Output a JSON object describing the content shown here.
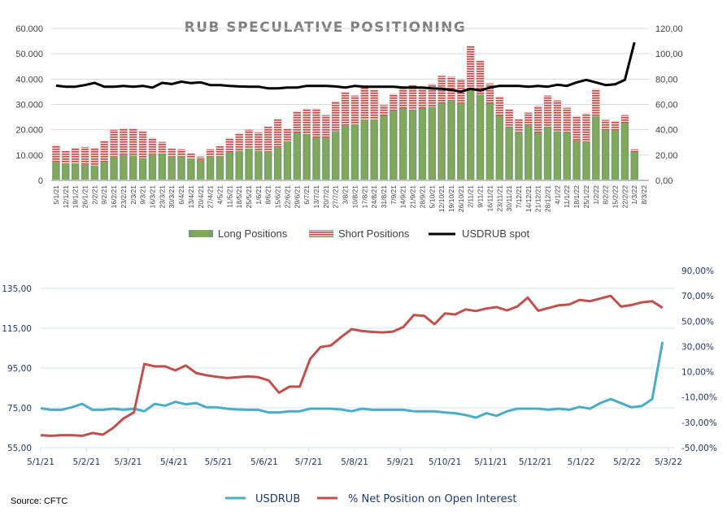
{
  "chart_data": [
    {
      "type": "bar",
      "title": "RUB SPECULATIVE POSITIONING",
      "stacked": true,
      "categories": [
        "5/1/21",
        "12/1/21",
        "19/1/21",
        "26/1/21",
        "2/2/21",
        "9/2/21",
        "16/2/21",
        "23/2/21",
        "2/3/21",
        "9/3/21",
        "16/3/21",
        "23/3/21",
        "30/3/21",
        "6/4/21",
        "13/4/21",
        "20/4/21",
        "27/4/21",
        "4/5/21",
        "11/5/21",
        "18/5/21",
        "25/5/21",
        "1/6/21",
        "8/6/21",
        "15/6/21",
        "22/6/21",
        "29/6/21",
        "6/7/21",
        "13/7/21",
        "20/7/21",
        "27/7/21",
        "3/8/21",
        "10/8/21",
        "17/8/21",
        "24/8/21",
        "31/8/21",
        "7/9/21",
        "14/9/21",
        "21/9/21",
        "28/9/21",
        "5/10/21",
        "12/10/21",
        "19/10/21",
        "26/10/21",
        "2/11/21",
        "9/11/21",
        "16/11/21",
        "23/11/21",
        "30/11/21",
        "7/12/21",
        "14/12/21",
        "21/12/21",
        "28/12/21",
        "4/1/22",
        "11/1/22",
        "18/1/22",
        "25/1/22",
        "1/2/22",
        "8/2/22",
        "15/2/22",
        "22/2/22",
        "1/3/22",
        "8/3/22"
      ],
      "series": [
        {
          "name": "Long Positions",
          "axis": "left",
          "color": "#7fa65a",
          "values": [
            7300,
            6600,
            6800,
            6100,
            5900,
            7400,
            9400,
            10000,
            9800,
            8800,
            10000,
            10400,
            9400,
            9400,
            8700,
            8100,
            9400,
            9500,
            11100,
            11700,
            12600,
            11700,
            11300,
            12900,
            15500,
            18800,
            18400,
            16900,
            16900,
            19500,
            21600,
            22000,
            24000,
            24100,
            25500,
            27400,
            28400,
            27700,
            28400,
            29100,
            30300,
            31600,
            30500,
            35400,
            33900,
            30300,
            25500,
            20900,
            19000,
            21600,
            18800,
            21000,
            19400,
            19000,
            15800,
            15200,
            25300,
            19700,
            19700,
            22600,
            11100,
            null
          ]
        },
        {
          "name": "Short Positions",
          "axis": "left",
          "color": "#c0504d",
          "values": [
            6600,
            5000,
            6100,
            7100,
            7000,
            8400,
            10600,
            10600,
            10800,
            10600,
            6800,
            4800,
            3200,
            2900,
            1900,
            1300,
            2900,
            4000,
            5700,
            7000,
            7400,
            7300,
            10000,
            11300,
            5100,
            8600,
            10000,
            11500,
            8900,
            11800,
            13200,
            11500,
            12600,
            11700,
            4200,
            6800,
            8100,
            10000,
            8400,
            9000,
            11000,
            9400,
            9500,
            17800,
            13500,
            8000,
            7700,
            7200,
            5200,
            5200,
            10600,
            12500,
            12200,
            9700,
            9700,
            11300,
            10800,
            4200,
            3800,
            3200,
            1200,
            null
          ]
        },
        {
          "name": "USDRUB spot",
          "axis": "right",
          "type": "line",
          "color": "#000000",
          "values": [
            74.8,
            74.0,
            74.0,
            75.3,
            77.0,
            74.0,
            74.0,
            74.6,
            74.0,
            74.6,
            73.3,
            77.0,
            76.1,
            78.0,
            76.8,
            77.4,
            75.3,
            75.3,
            74.6,
            74.2,
            74.0,
            74.0,
            72.7,
            72.7,
            73.3,
            73.3,
            74.6,
            74.6,
            74.6,
            74.2,
            73.3,
            74.6,
            74.0,
            74.0,
            74.0,
            74.0,
            73.3,
            73.3,
            73.3,
            72.7,
            72.3,
            71.4,
            70.1,
            72.3,
            71.0,
            73.3,
            74.6,
            74.6,
            74.6,
            74.0,
            74.6,
            74.0,
            75.5,
            74.6,
            77.4,
            79.4,
            77.4,
            75.3,
            75.9,
            79.4,
            109.0,
            null
          ]
        }
      ],
      "ylim_left": [
        0,
        60000
      ],
      "yticks_left": [
        "0",
        "10.000",
        "20.000",
        "30.000",
        "40.000",
        "50.000",
        "60.000"
      ],
      "ylim_right": [
        0,
        120
      ],
      "yticks_right": [
        "0,00",
        "20,00",
        "40,00",
        "60,00",
        "80,00",
        "100,00",
        "120,00"
      ],
      "grid": true,
      "legend": "bottom"
    },
    {
      "type": "line",
      "dates": [
        "5/1/21",
        "12/1/21",
        "19/1/21",
        "26/1/21",
        "2/2/21",
        "9/2/21",
        "16/2/21",
        "23/2/21",
        "2/3/21",
        "9/3/21",
        "16/3/21",
        "23/3/21",
        "30/3/21",
        "6/4/21",
        "13/4/21",
        "20/4/21",
        "27/4/21",
        "4/5/21",
        "11/5/21",
        "18/5/21",
        "25/5/21",
        "1/6/21",
        "8/6/21",
        "15/6/21",
        "22/6/21",
        "29/6/21",
        "6/7/21",
        "13/7/21",
        "20/7/21",
        "27/7/21",
        "3/8/21",
        "10/8/21",
        "17/8/21",
        "24/8/21",
        "31/8/21",
        "7/9/21",
        "14/9/21",
        "21/9/21",
        "28/9/21",
        "5/10/21",
        "12/10/21",
        "19/10/21",
        "26/10/21",
        "2/11/21",
        "9/11/21",
        "16/11/21",
        "23/11/21",
        "30/11/21",
        "7/12/21",
        "14/12/21",
        "21/12/21",
        "28/12/21",
        "4/1/22",
        "11/1/22",
        "18/1/22",
        "25/1/22",
        "1/2/22",
        "8/2/22",
        "15/2/22",
        "22/2/22",
        "1/3/22"
      ],
      "series": [
        {
          "name": "USDRUB",
          "axis": "left",
          "color": "#4bacc6",
          "values": [
            74.8,
            74.0,
            74.0,
            75.3,
            77.0,
            74.0,
            74.0,
            74.6,
            74.0,
            74.6,
            73.3,
            77.0,
            76.1,
            78.0,
            76.8,
            77.4,
            75.3,
            75.3,
            74.6,
            74.2,
            74.0,
            74.0,
            72.7,
            72.7,
            73.3,
            73.3,
            74.6,
            74.6,
            74.6,
            74.2,
            73.3,
            74.6,
            74.0,
            74.0,
            74.0,
            74.0,
            73.3,
            73.3,
            73.3,
            72.7,
            72.3,
            71.4,
            70.1,
            72.3,
            71.0,
            73.3,
            74.6,
            74.6,
            74.6,
            74.0,
            74.6,
            74.0,
            75.5,
            74.6,
            77.4,
            79.4,
            77.4,
            75.3,
            75.9,
            79.4,
            108.2
          ]
        },
        {
          "name": "% Net Position on Open Interest",
          "axis": "right",
          "color": "#c0504d",
          "values": [
            -40.1,
            -40.6,
            -40.1,
            -40.1,
            -40.6,
            -38.4,
            -39.7,
            -34.3,
            -26.8,
            -22.1,
            16.2,
            14.3,
            14.3,
            11.1,
            15.0,
            9.0,
            7.2,
            6.0,
            5.1,
            5.7,
            6.4,
            5.7,
            3.2,
            -6.5,
            -1.8,
            -1.8,
            20.1,
            29.5,
            30.8,
            37.5,
            43.7,
            42.2,
            41.5,
            41.1,
            41.8,
            45.4,
            54.8,
            54.2,
            47.6,
            56.1,
            55.3,
            59.3,
            58.0,
            60.0,
            61.1,
            58.5,
            61.7,
            68.6,
            58.3,
            60.4,
            62.6,
            63.2,
            66.8,
            65.8,
            67.9,
            70.0,
            61.5,
            62.8,
            64.9,
            65.8,
            60.6
          ]
        }
      ],
      "xticks": [
        "5/1/21",
        "5/2/21",
        "5/3/21",
        "5/4/21",
        "5/5/21",
        "5/6/21",
        "5/7/21",
        "5/8/21",
        "5/9/21",
        "5/10/21",
        "5/11/21",
        "5/12/21",
        "5/1/22",
        "5/2/22",
        "5/3/22"
      ],
      "ylim_left": [
        55,
        135
      ],
      "yticks_left": [
        "55,00",
        "75,00",
        "95,00",
        "115,00",
        "135,00"
      ],
      "ylim_right": [
        -50,
        90
      ],
      "yticks_right": [
        "-50,00%",
        "-30,00%",
        "-10,00%",
        "10,00%",
        "30,00%",
        "50,00%",
        "70,00%",
        "90,00%"
      ],
      "grid": true,
      "legend": "bottom"
    }
  ],
  "source": "Source: CFTC"
}
